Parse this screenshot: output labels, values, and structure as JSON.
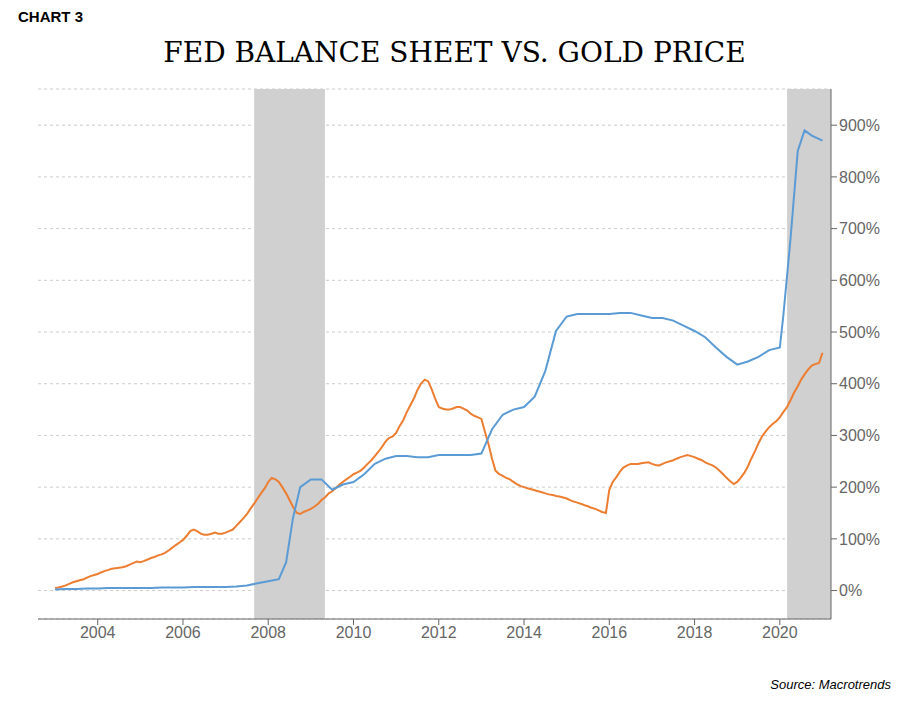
{
  "chart_data": {
    "type": "line",
    "title": "FED BALANCE SHEET VS. GOLD PRICE",
    "annotations": [
      "CHART 3",
      "Source: Macrotrends"
    ],
    "xlim": [
      2002.6,
      2021.2
    ],
    "xticks": [
      2004,
      2006,
      2008,
      2010,
      2012,
      2014,
      2016,
      2018,
      2020
    ],
    "ylim": [
      -55,
      970
    ],
    "yticks": [
      {
        "value": 0,
        "label": "0%"
      },
      {
        "value": 100,
        "label": "100%"
      },
      {
        "value": 200,
        "label": "200%"
      },
      {
        "value": 300,
        "label": "300%"
      },
      {
        "value": 400,
        "label": "400%"
      },
      {
        "value": 500,
        "label": "500%"
      },
      {
        "value": 600,
        "label": "600%"
      },
      {
        "value": 700,
        "label": "700%"
      },
      {
        "value": 800,
        "label": "800%"
      },
      {
        "value": 900,
        "label": "900%"
      }
    ],
    "grid": "y",
    "shaded_x_ranges": [
      {
        "from": 2007.67,
        "to": 2009.33,
        "color": "#d0d0d0"
      },
      {
        "from": 2020.17,
        "to": 2021.2,
        "color": "#d0d0d0"
      }
    ],
    "series": [
      {
        "color": "#ed7d31",
        "x": [
          2003.0,
          2003.08,
          2003.17,
          2003.25,
          2003.33,
          2003.42,
          2003.5,
          2003.58,
          2003.67,
          2003.75,
          2003.83,
          2003.92,
          2004.0,
          2004.08,
          2004.17,
          2004.25,
          2004.33,
          2004.42,
          2004.5,
          2004.58,
          2004.67,
          2004.75,
          2004.83,
          2004.92,
          2005.0,
          2005.08,
          2005.17,
          2005.25,
          2005.33,
          2005.42,
          2005.5,
          2005.58,
          2005.67,
          2005.75,
          2005.83,
          2005.92,
          2006.0,
          2006.08,
          2006.17,
          2006.25,
          2006.33,
          2006.42,
          2006.5,
          2006.58,
          2006.67,
          2006.75,
          2006.83,
          2006.92,
          2007.0,
          2007.08,
          2007.17,
          2007.25,
          2007.33,
          2007.42,
          2007.5,
          2007.58,
          2007.67,
          2007.75,
          2007.83,
          2007.92,
          2008.0,
          2008.08,
          2008.17,
          2008.25,
          2008.33,
          2008.42,
          2008.5,
          2008.58,
          2008.67,
          2008.75,
          2008.83,
          2008.92,
          2009.0,
          2009.08,
          2009.17,
          2009.25,
          2009.33,
          2009.42,
          2009.5,
          2009.58,
          2009.67,
          2009.75,
          2009.83,
          2009.92,
          2010.0,
          2010.08,
          2010.17,
          2010.25,
          2010.33,
          2010.42,
          2010.5,
          2010.58,
          2010.67,
          2010.75,
          2010.83,
          2010.92,
          2011.0,
          2011.08,
          2011.17,
          2011.25,
          2011.33,
          2011.42,
          2011.5,
          2011.58,
          2011.67,
          2011.75,
          2011.83,
          2011.92,
          2012.0,
          2012.08,
          2012.17,
          2012.25,
          2012.33,
          2012.42,
          2012.5,
          2012.58,
          2012.67,
          2012.75,
          2012.83,
          2012.92,
          2013.0,
          2013.08,
          2013.17,
          2013.25,
          2013.33,
          2013.42,
          2013.5,
          2013.58,
          2013.67,
          2013.75,
          2013.83,
          2013.92,
          2014.0,
          2014.08,
          2014.17,
          2014.25,
          2014.33,
          2014.42,
          2014.5,
          2014.58,
          2014.67,
          2014.75,
          2014.83,
          2014.92,
          2015.0,
          2015.08,
          2015.17,
          2015.25,
          2015.33,
          2015.42,
          2015.5,
          2015.58,
          2015.67,
          2015.75,
          2015.83,
          2015.92,
          2016.0,
          2016.08,
          2016.17,
          2016.25,
          2016.33,
          2016.42,
          2016.5,
          2016.58,
          2016.67,
          2016.75,
          2016.83,
          2016.92,
          2017.0,
          2017.08,
          2017.17,
          2017.25,
          2017.33,
          2017.42,
          2017.5,
          2017.58,
          2017.67,
          2017.75,
          2017.83,
          2017.92,
          2018.0,
          2018.08,
          2018.17,
          2018.25,
          2018.33,
          2018.42,
          2018.5,
          2018.58,
          2018.67,
          2018.75,
          2018.83,
          2018.92,
          2019.0,
          2019.08,
          2019.17,
          2019.25,
          2019.33,
          2019.42,
          2019.5,
          2019.58,
          2019.67,
          2019.75,
          2019.83,
          2019.92,
          2020.0,
          2020.08,
          2020.17,
          2020.25,
          2020.33,
          2020.42,
          2020.5,
          2020.58,
          2020.67,
          2020.75,
          2020.83,
          2020.92,
          2021.0
        ],
        "values": [
          5,
          6,
          8,
          10,
          13,
          16,
          18,
          20,
          22,
          25,
          28,
          30,
          32,
          35,
          38,
          40,
          42,
          43,
          44,
          45,
          47,
          50,
          53,
          56,
          55,
          57,
          60,
          63,
          65,
          68,
          70,
          73,
          78,
          83,
          88,
          93,
          98,
          105,
          115,
          118,
          115,
          110,
          108,
          108,
          110,
          112,
          110,
          110,
          112,
          115,
          118,
          125,
          132,
          140,
          148,
          158,
          168,
          178,
          188,
          198,
          210,
          218,
          215,
          210,
          200,
          188,
          175,
          162,
          150,
          148,
          152,
          155,
          158,
          162,
          168,
          175,
          180,
          188,
          192,
          198,
          205,
          210,
          215,
          220,
          225,
          228,
          232,
          238,
          245,
          252,
          260,
          268,
          278,
          288,
          295,
          298,
          305,
          318,
          330,
          345,
          358,
          372,
          388,
          400,
          408,
          405,
          390,
          370,
          355,
          352,
          350,
          350,
          352,
          355,
          355,
          352,
          348,
          342,
          338,
          335,
          332,
          308,
          282,
          255,
          232,
          225,
          222,
          218,
          215,
          210,
          206,
          202,
          200,
          198,
          196,
          194,
          192,
          190,
          188,
          186,
          185,
          183,
          182,
          180,
          178,
          175,
          172,
          170,
          168,
          165,
          163,
          160,
          158,
          155,
          152,
          150,
          195,
          210,
          220,
          230,
          238,
          242,
          245,
          245,
          245,
          246,
          247,
          248,
          245,
          243,
          242,
          245,
          248,
          250,
          252,
          255,
          258,
          260,
          262,
          260,
          258,
          255,
          252,
          248,
          245,
          242,
          238,
          232,
          225,
          218,
          212,
          206,
          210,
          218,
          228,
          240,
          255,
          270,
          285,
          298,
          308,
          316,
          322,
          328,
          335,
          345,
          355,
          368,
          382,
          395,
          408,
          418,
          428,
          435,
          438,
          440,
          460
        ]
      },
      {
        "color": "#5b9bd5",
        "x": [
          2003.0,
          2003.25,
          2003.5,
          2003.75,
          2004.0,
          2004.25,
          2004.5,
          2004.75,
          2005.0,
          2005.25,
          2005.5,
          2005.75,
          2006.0,
          2006.25,
          2006.5,
          2006.75,
          2007.0,
          2007.25,
          2007.5,
          2007.75,
          2008.0,
          2008.25,
          2008.42,
          2008.58,
          2008.75,
          2009.0,
          2009.25,
          2009.5,
          2009.75,
          2010.0,
          2010.25,
          2010.5,
          2010.75,
          2011.0,
          2011.25,
          2011.5,
          2011.75,
          2012.0,
          2012.25,
          2012.5,
          2012.75,
          2013.0,
          2013.25,
          2013.5,
          2013.75,
          2014.0,
          2014.25,
          2014.5,
          2014.75,
          2015.0,
          2015.25,
          2015.5,
          2015.75,
          2016.0,
          2016.25,
          2016.5,
          2016.75,
          2017.0,
          2017.25,
          2017.5,
          2017.75,
          2018.0,
          2018.25,
          2018.5,
          2018.75,
          2019.0,
          2019.25,
          2019.5,
          2019.75,
          2020.0,
          2020.08,
          2020.25,
          2020.42,
          2020.58,
          2020.75,
          2021.0
        ],
        "values": [
          2,
          3,
          3,
          4,
          4,
          5,
          5,
          5,
          5,
          5,
          6,
          6,
          6,
          7,
          7,
          7,
          7,
          8,
          10,
          14,
          18,
          22,
          55,
          140,
          200,
          215,
          215,
          195,
          205,
          210,
          225,
          245,
          255,
          260,
          260,
          258,
          258,
          262,
          262,
          262,
          262,
          265,
          312,
          340,
          350,
          355,
          375,
          425,
          502,
          530,
          535,
          535,
          535,
          535,
          537,
          537,
          532,
          527,
          527,
          522,
          512,
          502,
          490,
          470,
          452,
          437,
          443,
          452,
          465,
          470,
          530,
          680,
          850,
          890,
          880,
          870
        ]
      }
    ]
  }
}
